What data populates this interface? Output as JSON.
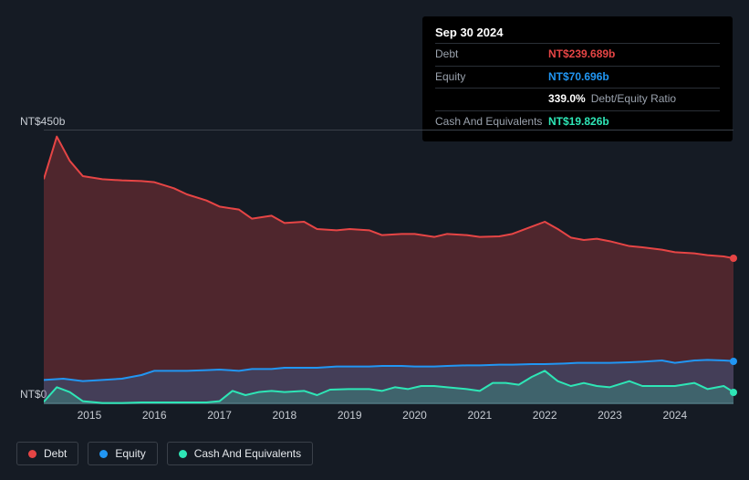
{
  "tooltip": {
    "date": "Sep 30 2024",
    "rows": [
      {
        "label": "Debt",
        "value": "NT$239.689b",
        "color": "#e64545"
      },
      {
        "label": "Equity",
        "value": "NT$70.696b",
        "color": "#2196f3"
      },
      {
        "label": "",
        "value": "339.0%",
        "extra": "Debt/Equity Ratio",
        "color": "#ffffff"
      },
      {
        "label": "Cash And Equivalents",
        "value": "NT$19.826b",
        "color": "#2ee6b6"
      }
    ]
  },
  "chart": {
    "type": "area",
    "background_color": "#151b24",
    "grid_color": "#3a4049",
    "ylabel_max": "NT$450b",
    "ylabel_min": "NT$0",
    "ylim": [
      0,
      450
    ],
    "x_ticks": [
      "2015",
      "2016",
      "2017",
      "2018",
      "2019",
      "2020",
      "2021",
      "2022",
      "2023",
      "2024"
    ],
    "x_domain": [
      2014.3,
      2024.9
    ],
    "series": [
      {
        "name": "Debt",
        "color": "#e64545",
        "fill": "rgba(230,69,69,0.28)",
        "stroke_width": 2,
        "points": [
          [
            2014.3,
            370
          ],
          [
            2014.5,
            440
          ],
          [
            2014.7,
            400
          ],
          [
            2014.9,
            375
          ],
          [
            2015.2,
            370
          ],
          [
            2015.5,
            368
          ],
          [
            2015.8,
            367
          ],
          [
            2016.0,
            365
          ],
          [
            2016.3,
            355
          ],
          [
            2016.5,
            345
          ],
          [
            2016.8,
            335
          ],
          [
            2017.0,
            325
          ],
          [
            2017.3,
            320
          ],
          [
            2017.5,
            305
          ],
          [
            2017.8,
            310
          ],
          [
            2018.0,
            298
          ],
          [
            2018.3,
            300
          ],
          [
            2018.5,
            288
          ],
          [
            2018.8,
            286
          ],
          [
            2019.0,
            288
          ],
          [
            2019.3,
            286
          ],
          [
            2019.5,
            278
          ],
          [
            2019.8,
            280
          ],
          [
            2020.0,
            280
          ],
          [
            2020.3,
            275
          ],
          [
            2020.5,
            280
          ],
          [
            2020.8,
            278
          ],
          [
            2021.0,
            275
          ],
          [
            2021.3,
            276
          ],
          [
            2021.5,
            280
          ],
          [
            2021.8,
            292
          ],
          [
            2022.0,
            300
          ],
          [
            2022.2,
            288
          ],
          [
            2022.4,
            274
          ],
          [
            2022.6,
            270
          ],
          [
            2022.8,
            272
          ],
          [
            2023.0,
            268
          ],
          [
            2023.3,
            260
          ],
          [
            2023.5,
            258
          ],
          [
            2023.8,
            254
          ],
          [
            2024.0,
            250
          ],
          [
            2024.3,
            248
          ],
          [
            2024.5,
            245
          ],
          [
            2024.75,
            243
          ],
          [
            2024.9,
            240
          ]
        ]
      },
      {
        "name": "Equity",
        "color": "#2196f3",
        "fill": "rgba(33,150,243,0.22)",
        "stroke_width": 2,
        "points": [
          [
            2014.3,
            40
          ],
          [
            2014.6,
            42
          ],
          [
            2014.9,
            38
          ],
          [
            2015.2,
            40
          ],
          [
            2015.5,
            42
          ],
          [
            2015.8,
            48
          ],
          [
            2016.0,
            55
          ],
          [
            2016.3,
            55
          ],
          [
            2016.5,
            55
          ],
          [
            2016.8,
            56
          ],
          [
            2017.0,
            57
          ],
          [
            2017.3,
            55
          ],
          [
            2017.5,
            58
          ],
          [
            2017.8,
            58
          ],
          [
            2018.0,
            60
          ],
          [
            2018.3,
            60
          ],
          [
            2018.5,
            60
          ],
          [
            2018.8,
            62
          ],
          [
            2019.0,
            62
          ],
          [
            2019.3,
            62
          ],
          [
            2019.5,
            63
          ],
          [
            2019.8,
            63
          ],
          [
            2020.0,
            62
          ],
          [
            2020.3,
            62
          ],
          [
            2020.5,
            63
          ],
          [
            2020.8,
            64
          ],
          [
            2021.0,
            64
          ],
          [
            2021.3,
            65
          ],
          [
            2021.5,
            65
          ],
          [
            2021.8,
            66
          ],
          [
            2022.0,
            66
          ],
          [
            2022.3,
            67
          ],
          [
            2022.5,
            68
          ],
          [
            2022.8,
            68
          ],
          [
            2023.0,
            68
          ],
          [
            2023.3,
            69
          ],
          [
            2023.5,
            70
          ],
          [
            2023.8,
            72
          ],
          [
            2024.0,
            68
          ],
          [
            2024.3,
            72
          ],
          [
            2024.5,
            73
          ],
          [
            2024.75,
            72
          ],
          [
            2024.9,
            71
          ]
        ]
      },
      {
        "name": "Cash And Equivalents",
        "color": "#2ee6b6",
        "fill": "rgba(46,230,182,0.22)",
        "stroke_width": 2,
        "points": [
          [
            2014.3,
            4
          ],
          [
            2014.5,
            28
          ],
          [
            2014.7,
            20
          ],
          [
            2014.9,
            5
          ],
          [
            2015.2,
            2
          ],
          [
            2015.5,
            2
          ],
          [
            2015.8,
            3
          ],
          [
            2016.0,
            3
          ],
          [
            2016.3,
            3
          ],
          [
            2016.5,
            3
          ],
          [
            2016.8,
            3
          ],
          [
            2017.0,
            5
          ],
          [
            2017.2,
            22
          ],
          [
            2017.4,
            15
          ],
          [
            2017.6,
            20
          ],
          [
            2017.8,
            22
          ],
          [
            2018.0,
            20
          ],
          [
            2018.3,
            22
          ],
          [
            2018.5,
            15
          ],
          [
            2018.7,
            24
          ],
          [
            2019.0,
            25
          ],
          [
            2019.3,
            25
          ],
          [
            2019.5,
            22
          ],
          [
            2019.7,
            28
          ],
          [
            2019.9,
            25
          ],
          [
            2020.1,
            30
          ],
          [
            2020.3,
            30
          ],
          [
            2020.5,
            28
          ],
          [
            2020.8,
            25
          ],
          [
            2021.0,
            22
          ],
          [
            2021.2,
            35
          ],
          [
            2021.4,
            35
          ],
          [
            2021.6,
            32
          ],
          [
            2021.8,
            45
          ],
          [
            2022.0,
            55
          ],
          [
            2022.2,
            38
          ],
          [
            2022.4,
            30
          ],
          [
            2022.6,
            35
          ],
          [
            2022.8,
            30
          ],
          [
            2023.0,
            28
          ],
          [
            2023.3,
            38
          ],
          [
            2023.5,
            30
          ],
          [
            2023.8,
            30
          ],
          [
            2024.0,
            30
          ],
          [
            2024.3,
            35
          ],
          [
            2024.5,
            25
          ],
          [
            2024.75,
            30
          ],
          [
            2024.9,
            20
          ]
        ]
      }
    ]
  },
  "legend": {
    "items": [
      {
        "label": "Debt",
        "color": "#e64545"
      },
      {
        "label": "Equity",
        "color": "#2196f3"
      },
      {
        "label": "Cash And Equivalents",
        "color": "#2ee6b6"
      }
    ]
  },
  "text_color": "#c7ccd3",
  "label_fontsize": 12
}
